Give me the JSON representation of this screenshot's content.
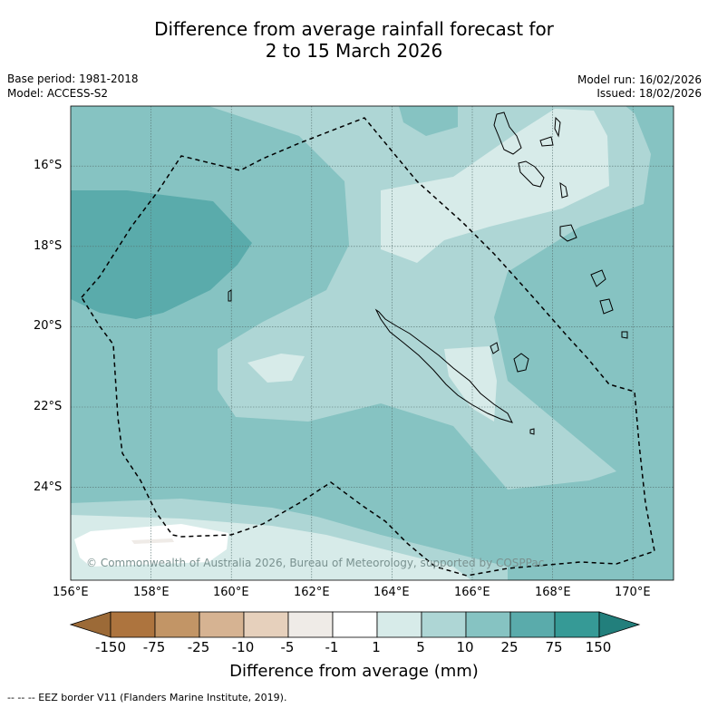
{
  "title_line1": "Difference from average rainfall forecast for",
  "title_line2": "2 to 15 March 2026",
  "base_period": "Base period: 1981-2018",
  "model": "Model: ACCESS-S2",
  "model_run": "Model run: 16/02/2026",
  "issued": "Issued: 18/02/2026",
  "x_ticks": [
    "156°E",
    "158°E",
    "160°E",
    "162°E",
    "164°E",
    "166°E",
    "168°E",
    "170°E"
  ],
  "y_ticks": [
    "16°S",
    "18°S",
    "20°S",
    "22°S",
    "24°S"
  ],
  "colorbar": {
    "labels": [
      "-150",
      "-75",
      "-25",
      "-10",
      "-5",
      "-1",
      "1",
      "5",
      "10",
      "25",
      "75",
      "150"
    ],
    "colors": [
      "#9c6a37",
      "#ad743e",
      "#c29566",
      "#d6b392",
      "#e6d0bc",
      "#efebe7",
      "#ffffff",
      "#d7ebe9",
      "#aed6d5",
      "#86c3c2",
      "#5aabab",
      "#369a96",
      "#227f7c"
    ],
    "title": "Difference from average (mm)"
  },
  "copyright": "© Commonwealth of Australia 2026, Bureau of Meteorology, supported by COSPPac",
  "footnote": "--  --  -- EEZ border V11 (Flanders Marine Institute, 2019)."
}
